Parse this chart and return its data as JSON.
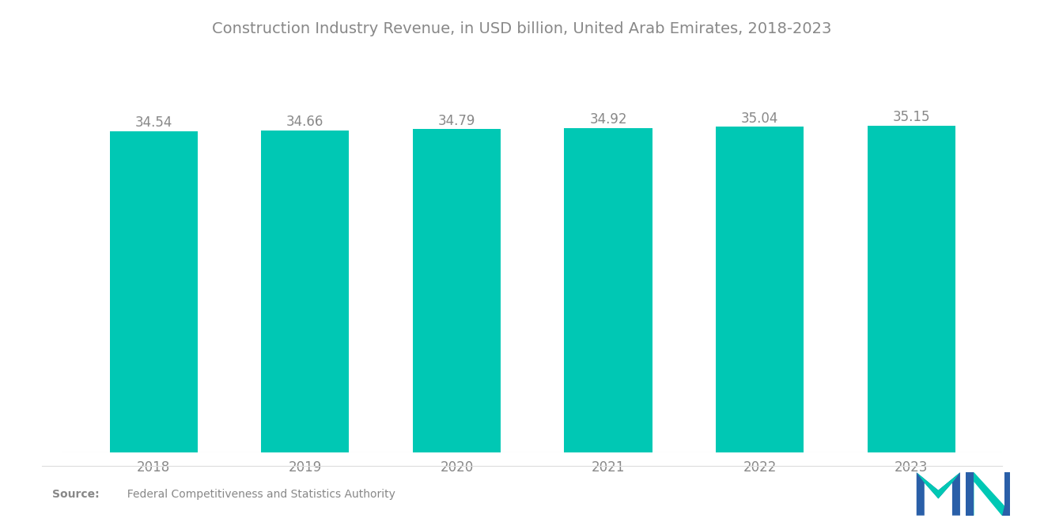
{
  "title": "Construction Industry Revenue, in USD billion, United Arab Emirates, 2018-2023",
  "categories": [
    "2018",
    "2019",
    "2020",
    "2021",
    "2022",
    "2023"
  ],
  "values": [
    34.54,
    34.66,
    34.79,
    34.92,
    35.04,
    35.15
  ],
  "bar_color": "#00C8B4",
  "background_color": "#ffffff",
  "title_fontsize": 14,
  "label_fontsize": 12,
  "bar_label_fontsize": 12,
  "source_bold": "Source:",
  "source_normal": "  Federal Competitiveness and Statistics Authority",
  "ylim_min": 0,
  "ylim_max": 38.5,
  "title_color": "#888888",
  "label_color": "#888888",
  "value_color": "#888888"
}
